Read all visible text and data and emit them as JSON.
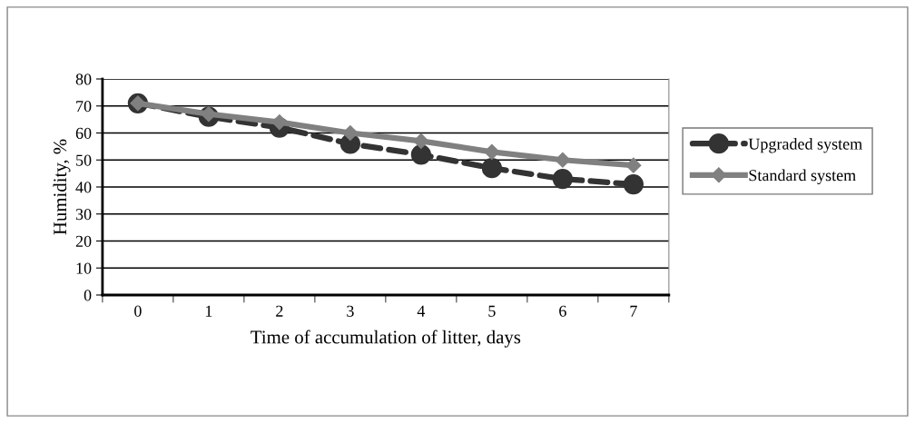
{
  "chart_data": {
    "type": "line",
    "xlabel": "Time of accumulation of litter, days",
    "ylabel": "Humidity, %",
    "categories": [
      "0",
      "1",
      "2",
      "3",
      "4",
      "5",
      "6",
      "7"
    ],
    "series": [
      {
        "name": "Upgraded system",
        "color": "#333333",
        "marker": "circle",
        "line_style": "dashed",
        "values": [
          71,
          66,
          62,
          56,
          52,
          47,
          43,
          41
        ]
      },
      {
        "name": "Standard system",
        "color": "#808080",
        "marker": "diamond",
        "line_style": "solid",
        "values": [
          71,
          67,
          64,
          60,
          57,
          53,
          50,
          48
        ]
      }
    ],
    "ylim": [
      0,
      80
    ],
    "yticks": [
      0,
      10,
      20,
      30,
      40,
      50,
      60,
      70,
      80
    ],
    "grid": "y",
    "legend": "right"
  }
}
